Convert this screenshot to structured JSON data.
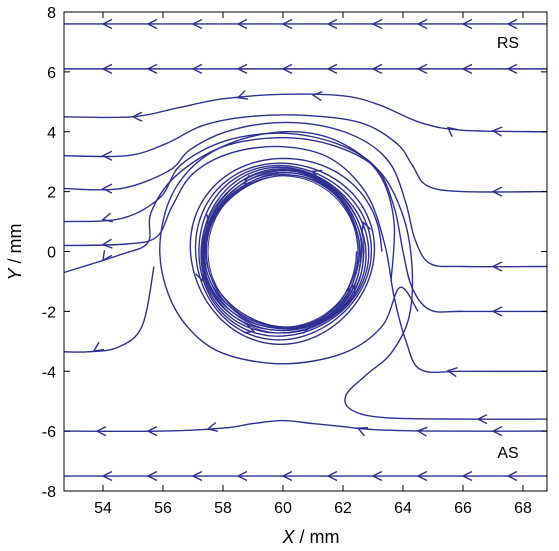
{
  "chart_data": {
    "type": "line",
    "subtype": "streamlines",
    "title": "",
    "xlabel": {
      "var": "X",
      "unit": " / mm"
    },
    "ylabel": {
      "var": "Y",
      "unit": " / mm"
    },
    "xlim": [
      52.7,
      68.8
    ],
    "ylim": [
      -8,
      8
    ],
    "xticks": [
      54,
      56,
      58,
      60,
      62,
      64,
      66,
      68
    ],
    "yticks": [
      -8,
      -6,
      -4,
      -2,
      0,
      2,
      4,
      6,
      8
    ],
    "grid": false,
    "legend": "none",
    "color": "#2e3192",
    "annotations": [
      {
        "text": "RS",
        "x": 67.5,
        "y": 6.8
      },
      {
        "text": "AS",
        "x": 67.5,
        "y": -6.9
      }
    ],
    "flow_direction": "right-to-left",
    "series": [
      {
        "points": [
          [
            68.8,
            7.6
          ],
          [
            52.7,
            7.6
          ]
        ],
        "arrows_x": [
          67.5,
          66,
          64.5,
          63,
          61.5,
          60,
          58.5,
          57,
          55.5,
          54
        ]
      },
      {
        "points": [
          [
            68.8,
            6.1
          ],
          [
            52.7,
            6.1
          ]
        ],
        "arrows_x": [
          67.5,
          66,
          64.5,
          63,
          61.5,
          60,
          58.5,
          57,
          55.5,
          54
        ]
      },
      {
        "points": [
          [
            68.8,
            4.0
          ],
          [
            66,
            4.05
          ],
          [
            64.6,
            4.3
          ],
          [
            63.2,
            4.9
          ],
          [
            62,
            5.2
          ],
          [
            60,
            5.25
          ],
          [
            58,
            5.1
          ],
          [
            56.5,
            4.8
          ],
          [
            55,
            4.5
          ],
          [
            52.7,
            4.5
          ]
        ],
        "arrows_x": [
          67,
          65.5,
          61,
          58.5,
          55
        ]
      },
      {
        "points": [
          [
            68.8,
            2.0
          ],
          [
            66,
            2.0
          ],
          [
            64.8,
            2.2
          ],
          [
            64.3,
            2.9
          ],
          [
            63.8,
            3.6
          ],
          [
            62.6,
            4.3
          ],
          [
            60.7,
            4.55
          ],
          [
            58.8,
            4.5
          ],
          [
            57.3,
            4.2
          ],
          [
            56.1,
            3.6
          ],
          [
            54.8,
            3.2
          ],
          [
            52.7,
            3.2
          ]
        ],
        "arrows_x": [
          67,
          54
        ]
      },
      {
        "points": [
          [
            68.8,
            -0.5
          ],
          [
            66,
            -0.5
          ],
          [
            64.9,
            -0.4
          ],
          [
            64.4,
            0.4
          ],
          [
            64.1,
            1.6
          ],
          [
            63.6,
            2.9
          ],
          [
            62.7,
            3.7
          ],
          [
            61.3,
            4.2
          ],
          [
            59.7,
            4.3
          ],
          [
            58.1,
            4.0
          ],
          [
            56.9,
            3.4
          ],
          [
            56.2,
            2.7
          ],
          [
            54.6,
            2.1
          ],
          [
            52.7,
            2.1
          ]
        ],
        "arrows_x": [
          67,
          54
        ]
      },
      {
        "points": [
          [
            68.8,
            -2.0
          ],
          [
            66,
            -2.0
          ],
          [
            64.9,
            -1.95
          ],
          [
            64.3,
            -1.2
          ],
          [
            64.0,
            0.0
          ],
          [
            63.7,
            1.5
          ],
          [
            63.1,
            2.8
          ],
          [
            61.8,
            3.6
          ],
          [
            60.0,
            3.95
          ],
          [
            58.1,
            3.7
          ],
          [
            56.6,
            2.9
          ],
          [
            55.9,
            1.8
          ],
          [
            54.6,
            1.1
          ],
          [
            52.7,
            1.0
          ]
        ],
        "arrows_x": [
          67,
          54
        ]
      },
      {
        "points": [
          [
            68.8,
            -4.0
          ],
          [
            66,
            -4.0
          ],
          [
            64.6,
            -3.95
          ],
          [
            64.1,
            -3.0
          ],
          [
            63.7,
            -1.5
          ],
          [
            63.4,
            0.2
          ],
          [
            62.8,
            1.9
          ],
          [
            61.6,
            3.1
          ],
          [
            60.0,
            3.5
          ],
          [
            58.3,
            3.3
          ],
          [
            57.0,
            2.6
          ],
          [
            56.3,
            1.5
          ],
          [
            55.8,
            0.5
          ],
          [
            54.8,
            0.25
          ],
          [
            52.7,
            0.2
          ]
        ],
        "arrows_x": [
          65.5,
          54
        ]
      },
      {
        "points": [
          [
            68.8,
            -5.6
          ],
          [
            66,
            -5.6
          ],
          [
            63.4,
            -5.55
          ],
          [
            62.3,
            -5.3
          ],
          [
            62.1,
            -4.8
          ],
          [
            62.8,
            -4.1
          ],
          [
            63.6,
            -3.4
          ],
          [
            64.2,
            -2.2
          ],
          [
            64.3,
            -0.5
          ],
          [
            64.0,
            1.2
          ],
          [
            63.2,
            2.7
          ],
          [
            61.8,
            3.5
          ],
          [
            60.0,
            3.8
          ],
          [
            58.0,
            3.5
          ],
          [
            56.4,
            2.5
          ],
          [
            55.6,
            1.3
          ],
          [
            55.5,
            0.3
          ],
          [
            54.6,
            -0.1
          ],
          [
            52.7,
            -0.7
          ]
        ],
        "arrows_x": [
          66.5,
          54
        ]
      },
      {
        "points": [
          [
            64.5,
            -2.0
          ],
          [
            63.9,
            -1.2
          ],
          [
            63.3,
            -2.5
          ],
          [
            62.0,
            -3.4
          ],
          [
            60.0,
            -3.75
          ],
          [
            58.0,
            -3.4
          ],
          [
            56.8,
            -2.5
          ],
          [
            56.1,
            -1.2
          ],
          [
            55.9,
            0.3
          ],
          [
            56.3,
            1.9
          ],
          [
            57.3,
            3.1
          ],
          [
            58.8,
            3.8
          ],
          [
            60.5,
            4.0
          ],
          [
            62.0,
            3.6
          ],
          [
            63.2,
            2.6
          ],
          [
            63.7,
            1.0
          ],
          [
            63.6,
            -1.0
          ]
        ],
        "arrows_x": []
      },
      {
        "points": [
          [
            55.7,
            -0.5
          ],
          [
            55.3,
            -2.5
          ],
          [
            54.5,
            -3.2
          ],
          [
            53.5,
            -3.35
          ],
          [
            52.7,
            -3.35
          ]
        ],
        "arrows_x": [
          53.7
        ]
      },
      {
        "points": [
          [
            68.8,
            -6.0
          ],
          [
            65,
            -6.0
          ],
          [
            63,
            -5.95
          ],
          [
            62,
            -5.85
          ],
          [
            61,
            -5.75
          ],
          [
            60,
            -5.65
          ],
          [
            59,
            -5.75
          ],
          [
            58,
            -5.9
          ],
          [
            56,
            -6.0
          ],
          [
            52.7,
            -6.0
          ]
        ],
        "arrows_x": [
          67,
          64.5,
          62.5,
          57.5,
          55.5,
          53.8
        ]
      },
      {
        "points": [
          [
            68.8,
            -7.5
          ],
          [
            52.7,
            -7.5
          ]
        ],
        "arrows_x": [
          67.5,
          66,
          64.5,
          63,
          61.5,
          60,
          58.5,
          57,
          55.5,
          54
        ]
      }
    ],
    "vortex": {
      "center": [
        60.0,
        0.0
      ],
      "inner_radius": 2.5,
      "outer_radius": 3.3,
      "turns": 8
    }
  }
}
